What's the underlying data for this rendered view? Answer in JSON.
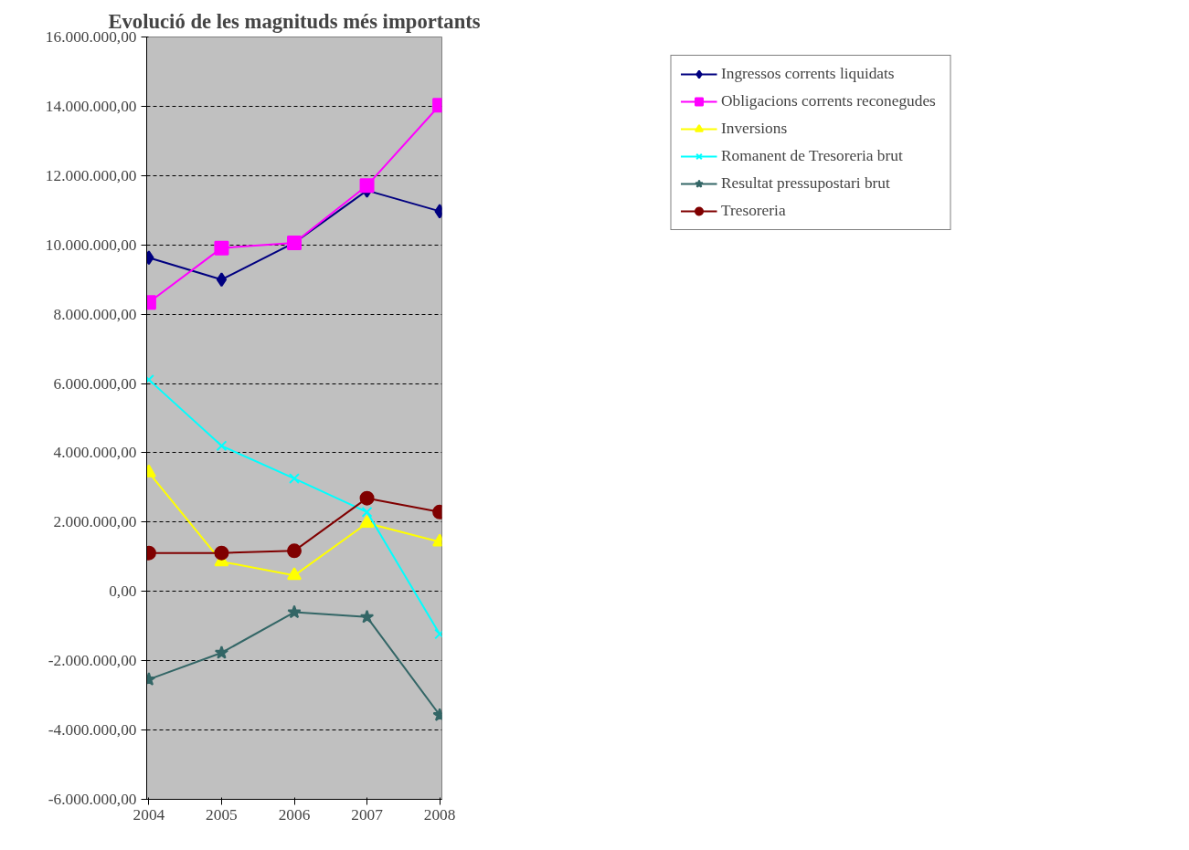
{
  "chart_data": {
    "type": "line",
    "title": "Evolució de les magnituds més importants",
    "categories": [
      "2004",
      "2005",
      "2006",
      "2007",
      "2008"
    ],
    "series": [
      {
        "name": "Ingressos corrents liquidats",
        "color": "#000080",
        "marker": "diamond",
        "values": [
          9630000,
          9000000,
          10060000,
          11570000,
          10970000
        ]
      },
      {
        "name": "Obligacions corrents reconegudes",
        "color": "#ff00ff",
        "marker": "square",
        "values": [
          8340000,
          9910000,
          10060000,
          11710000,
          14030000
        ]
      },
      {
        "name": "Inversions",
        "color": "#ffff00",
        "marker": "triangle",
        "values": [
          3430000,
          860000,
          460000,
          1970000,
          1430000
        ]
      },
      {
        "name": "Romanent de Tresoreria brut",
        "color": "#00ffff",
        "marker": "cross",
        "values": [
          6110000,
          4200000,
          3260000,
          2290000,
          -1230000
        ]
      },
      {
        "name": "Resultat pressupostari brut",
        "color": "#336666",
        "marker": "star",
        "values": [
          -2540000,
          -1770000,
          -600000,
          -740000,
          -3570000
        ]
      },
      {
        "name": "Tresoreria",
        "color": "#800000",
        "marker": "circle",
        "values": [
          1110000,
          1110000,
          1170000,
          2690000,
          2290000
        ]
      }
    ],
    "ylim": [
      -6000000,
      16000000
    ],
    "yticks": [
      {
        "value": -6000000,
        "label": "-6.000.000,00"
      },
      {
        "value": -4000000,
        "label": "-4.000.000,00"
      },
      {
        "value": -2000000,
        "label": "-2.000.000,00"
      },
      {
        "value": 0,
        "label": "0,00"
      },
      {
        "value": 2000000,
        "label": "2.000.000,00"
      },
      {
        "value": 4000000,
        "label": "4.000.000,00"
      },
      {
        "value": 6000000,
        "label": "6.000.000,00"
      },
      {
        "value": 8000000,
        "label": "8.000.000,00"
      },
      {
        "value": 10000000,
        "label": "10.000.000,00"
      },
      {
        "value": 12000000,
        "label": "12.000.000,00"
      },
      {
        "value": 14000000,
        "label": "14.000.000,00"
      },
      {
        "value": 16000000,
        "label": "16.000.000,00"
      }
    ],
    "grid": "y",
    "legend": "right",
    "line_style": "solid"
  }
}
